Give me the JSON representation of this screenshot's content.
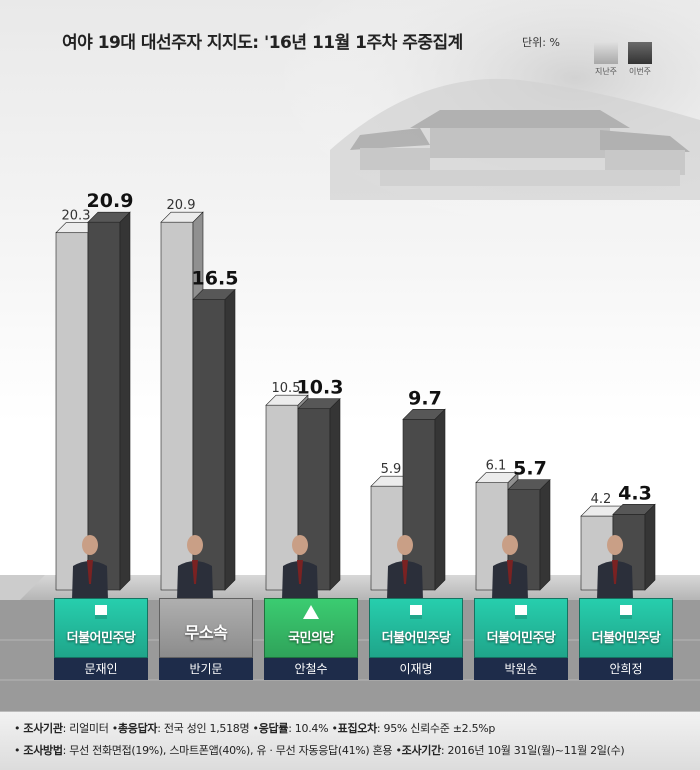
{
  "header": {
    "title": "여야 19대 대선주자 지지도: '16년 11월 1주차 주중집계",
    "unit": "단위: %"
  },
  "legend": {
    "previous": "지난주",
    "current": "이번주"
  },
  "colors": {
    "previous_bar": "#c8c8c8",
    "current_bar": "#4a4a4a",
    "minjoo": "#1fa58a",
    "people": "#2fa35a",
    "independent": "#8c8c8c",
    "nameplate": "#1e2c4a"
  },
  "chart_data": {
    "type": "bar",
    "categories": [
      "문재인",
      "반기문",
      "안철수",
      "이재명",
      "박원순",
      "안희정"
    ],
    "series": [
      {
        "name": "지난주",
        "values": [
          20.3,
          20.9,
          10.5,
          5.9,
          6.1,
          4.2
        ]
      },
      {
        "name": "이번주",
        "values": [
          20.9,
          16.5,
          10.3,
          9.7,
          5.7,
          4.3
        ]
      }
    ],
    "previous_labels": [
      "20.3",
      "20.9",
      "10.5",
      "5.9",
      "6.1",
      "4.2"
    ],
    "current_labels": [
      "20.9",
      "16.5",
      "10.3",
      "9.7",
      "5.7",
      "4.3"
    ],
    "ylim": [
      0,
      22
    ]
  },
  "candidates": [
    {
      "name": "문재인",
      "party": "더불어민주당",
      "party_color": "minjoo",
      "mark": "square"
    },
    {
      "name": "반기문",
      "party": "무소속",
      "party_color": "independent",
      "mark": "none"
    },
    {
      "name": "안철수",
      "party": "국민의당",
      "party_color": "people",
      "mark": "tri"
    },
    {
      "name": "이재명",
      "party": "더불어민주당",
      "party_color": "minjoo",
      "mark": "square"
    },
    {
      "name": "박원순",
      "party": "더불어민주당",
      "party_color": "minjoo",
      "mark": "square"
    },
    {
      "name": "안희정",
      "party": "더불어민주당",
      "party_color": "minjoo",
      "mark": "square"
    }
  ],
  "footer": {
    "line1": [
      {
        "label": "조사기관",
        "value": "리얼미터"
      },
      {
        "label": "총응답자",
        "value": "전국 성인 1,518명"
      },
      {
        "label": "응답률",
        "value": "10.4%"
      },
      {
        "label": "표집오차",
        "value": "95% 신뢰수준 ±2.5%p"
      }
    ],
    "line2": [
      {
        "label": "조사방법",
        "value": "무선 전화면접(19%), 스마트폰앱(40%), 유 · 무선 자동응답(41%) 혼용"
      },
      {
        "label": "조사기간",
        "value": "2016년 10월 31일(월)~11월 2일(수)"
      }
    ]
  }
}
